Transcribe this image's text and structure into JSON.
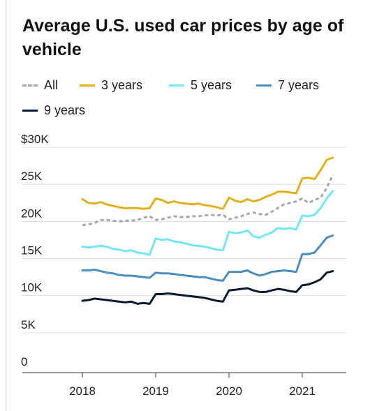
{
  "title": "Average U.S. used car prices by age of vehicle",
  "colors": {
    "All": "#a7a7a7",
    "3 years": "#e3b01d",
    "5 years": "#74e6f7",
    "7 years": "#4a8fbe",
    "9 years": "#0b1a33"
  },
  "chart_data": {
    "type": "line",
    "title": "Average U.S. used car prices by age of vehicle",
    "xlabel": "",
    "ylabel": "",
    "x_ticks": [
      "2018",
      "2019",
      "2020",
      "2021"
    ],
    "y_ticks": [
      "$30K",
      "25K",
      "20K",
      "15K",
      "10K",
      "5K",
      "0"
    ],
    "y_tick_values": [
      30000,
      25000,
      20000,
      15000,
      10000,
      5000,
      0
    ],
    "ylim": [
      0,
      30000
    ],
    "xlim": [
      2018,
      2021.5
    ],
    "grid": "horizontal",
    "legend": "top",
    "x": [
      2018.0,
      2018.0833,
      2018.1667,
      2018.25,
      2018.3333,
      2018.4167,
      2018.5,
      2018.5833,
      2018.6667,
      2018.75,
      2018.8333,
      2018.9167,
      2019.0,
      2019.0833,
      2019.1667,
      2019.25,
      2019.3333,
      2019.4167,
      2019.5,
      2019.5833,
      2019.6667,
      2019.75,
      2019.8333,
      2019.9167,
      2020.0,
      2020.0833,
      2020.1667,
      2020.25,
      2020.3333,
      2020.4167,
      2020.5,
      2020.5833,
      2020.6667,
      2020.75,
      2020.8333,
      2020.9167,
      2021.0,
      2021.0833,
      2021.1667,
      2021.25,
      2021.3333,
      2021.4167
    ],
    "series": [
      {
        "name": "All",
        "style": "dashed",
        "values": [
          19500,
          19600,
          19800,
          20200,
          20200,
          20100,
          20000,
          20100,
          20100,
          20200,
          20500,
          20700,
          20200,
          20300,
          20500,
          20700,
          20600,
          20600,
          20700,
          20700,
          20800,
          20900,
          20800,
          20900,
          20300,
          20500,
          20700,
          21000,
          21200,
          21000,
          20900,
          21300,
          21800,
          22300,
          22500,
          22700,
          23100,
          22500,
          22900,
          23200,
          24500,
          26300
        ]
      },
      {
        "name": "3 years",
        "style": "solid",
        "values": [
          23000,
          22500,
          22400,
          22600,
          22300,
          22100,
          21900,
          21800,
          21800,
          21800,
          21700,
          21800,
          23100,
          22900,
          22500,
          22700,
          22500,
          22400,
          22300,
          22400,
          22200,
          22100,
          21900,
          21700,
          23200,
          22800,
          22600,
          23000,
          22700,
          22900,
          23300,
          23600,
          24000,
          24000,
          23900,
          23800,
          25800,
          25900,
          25700,
          26900,
          28300,
          28600
        ]
      },
      {
        "name": "5 years",
        "style": "solid",
        "values": [
          16600,
          16500,
          16600,
          16700,
          16600,
          16300,
          16200,
          16000,
          16100,
          15800,
          15700,
          15500,
          17700,
          17500,
          17600,
          17300,
          17200,
          17000,
          16800,
          16700,
          16600,
          16400,
          16200,
          16100,
          18600,
          18400,
          18500,
          18800,
          18000,
          17800,
          18200,
          18500,
          19100,
          19000,
          19100,
          18900,
          20800,
          20700,
          20900,
          21800,
          23100,
          24100
        ]
      },
      {
        "name": "7 years",
        "style": "solid",
        "values": [
          13400,
          13400,
          13500,
          13300,
          13100,
          13000,
          12800,
          12700,
          12700,
          12600,
          12500,
          12400,
          13100,
          13000,
          13000,
          12900,
          12800,
          12700,
          12600,
          12500,
          12500,
          12300,
          12100,
          12000,
          13200,
          13200,
          13200,
          13400,
          13000,
          12700,
          12900,
          13200,
          13300,
          13400,
          13300,
          13200,
          15600,
          15600,
          15800,
          16800,
          17800,
          18100
        ]
      },
      {
        "name": "9 years",
        "style": "solid",
        "values": [
          9300,
          9400,
          9600,
          9500,
          9400,
          9300,
          9200,
          9100,
          9200,
          8900,
          9000,
          8900,
          10200,
          10200,
          10300,
          10200,
          10100,
          10000,
          9900,
          9800,
          9700,
          9500,
          9300,
          9200,
          10700,
          10800,
          10900,
          11000,
          10700,
          10500,
          10500,
          10700,
          10900,
          10800,
          10600,
          10500,
          11400,
          11500,
          11800,
          12200,
          13100,
          13300
        ]
      }
    ]
  }
}
